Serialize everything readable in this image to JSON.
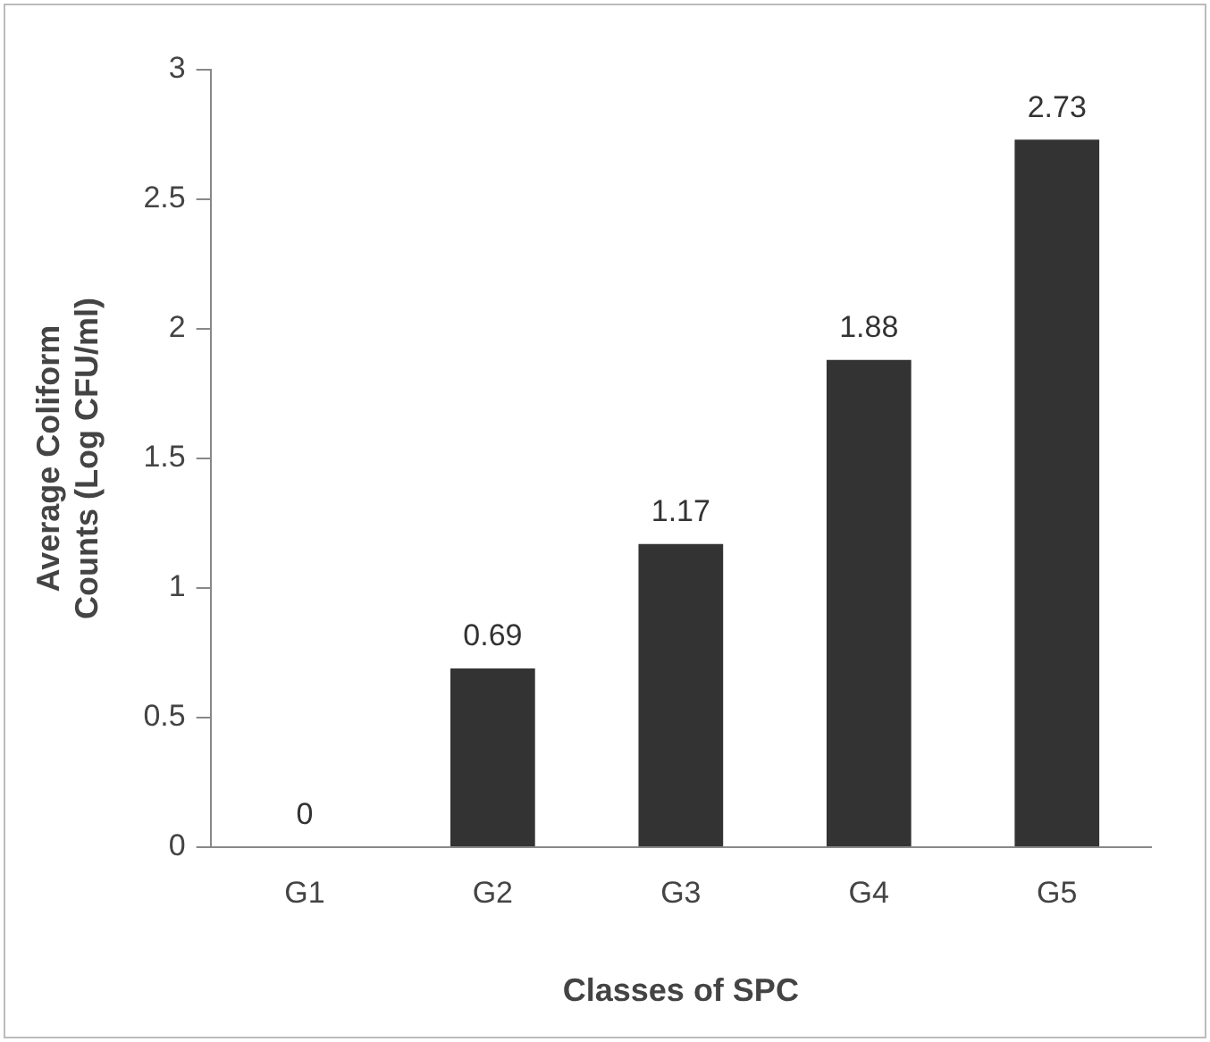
{
  "chart_data": {
    "type": "bar",
    "xlabel": "Classes of SPC",
    "ylabel": "Average Coliform Counts (Log CFU/ml)",
    "categories": [
      "G1",
      "G2",
      "G3",
      "G4",
      "G5"
    ],
    "values": [
      0,
      0.69,
      1.17,
      1.88,
      2.73
    ],
    "color": "#333333",
    "ylim": [
      0,
      3
    ],
    "yticks": [
      0,
      0.5,
      1,
      1.5,
      2,
      2.5,
      3
    ],
    "grid": false,
    "legend": false,
    "data_labels": true
  }
}
